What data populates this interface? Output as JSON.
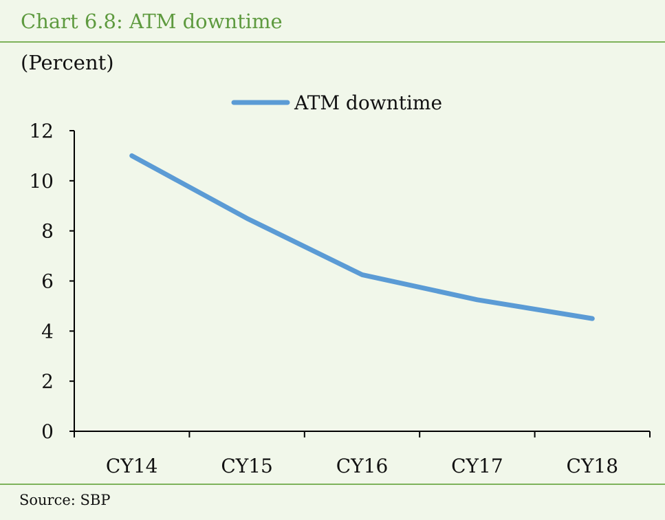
{
  "header": {
    "title": "Chart 6.8: ATM downtime",
    "unit_label": "(Percent)"
  },
  "footer": {
    "source": "Source:  SBP"
  },
  "colors": {
    "title": "#5e9a3f",
    "rule": "#7db25a",
    "background": "#f1f7ea",
    "series": "#5b9bd5",
    "axis": "#000000"
  },
  "chart_data": {
    "type": "line",
    "title": "",
    "xlabel": "",
    "ylabel": "(Percent)",
    "categories": [
      "CY14",
      "CY15",
      "CY16",
      "CY17",
      "CY18"
    ],
    "series": [
      {
        "name": "ATM downtime",
        "values": [
          11.0,
          8.5,
          6.25,
          5.25,
          4.5
        ]
      }
    ],
    "ylim": [
      0,
      12
    ],
    "yticks": [
      0,
      2,
      4,
      6,
      8,
      10,
      12
    ],
    "grid": false,
    "legend_position": "top-center"
  }
}
